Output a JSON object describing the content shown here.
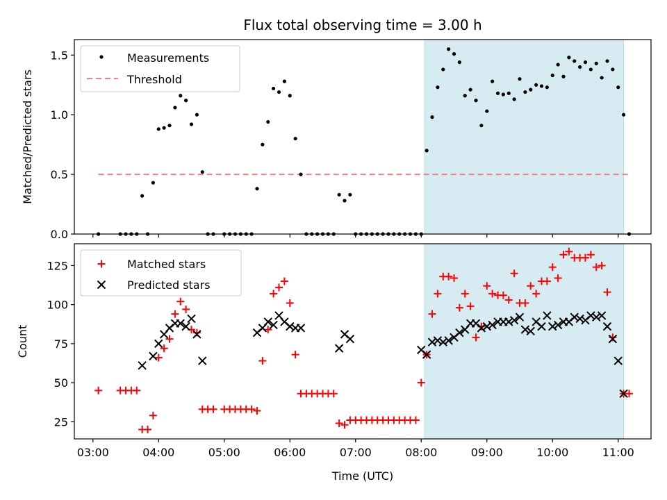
{
  "colors": {
    "measurement": "#000000",
    "threshold": "#f08080",
    "matched": "#ff0000",
    "predicted": "#000000",
    "shade": "#add8e6"
  },
  "chart_data": [
    {
      "type": "scatter",
      "title": "Flux total observing time = 3.00 h",
      "ylabel": "Matched/Predicted stars",
      "xlabel": "",
      "xlim": [
        "02:43",
        "11:30"
      ],
      "ylim": [
        0,
        1.63
      ],
      "yticks": [
        "0.0",
        "0.5",
        "1.0",
        "1.5"
      ],
      "shaded_region": [
        "08:03",
        "11:05"
      ],
      "threshold": {
        "y": 0.5,
        "x_range": [
          "03:05",
          "11:10"
        ]
      },
      "legend": {
        "placement": "upper-left",
        "entries": [
          "Measurements",
          "Threshold"
        ]
      },
      "series": [
        {
          "name": "Measurements",
          "points": [
            [
              "03:05",
              0
            ],
            [
              "03:25",
              0
            ],
            [
              "03:30",
              0
            ],
            [
              "03:35",
              0
            ],
            [
              "03:40",
              0
            ],
            [
              "03:45",
              0.32
            ],
            [
              "03:50",
              0
            ],
            [
              "03:55",
              0.43
            ],
            [
              "04:00",
              0.88
            ],
            [
              "04:05",
              0.89
            ],
            [
              "04:10",
              0.91
            ],
            [
              "04:15",
              1.06
            ],
            [
              "04:20",
              1.16
            ],
            [
              "04:25",
              1.12
            ],
            [
              "04:30",
              0.92
            ],
            [
              "04:35",
              1.0
            ],
            [
              "04:40",
              0.52
            ],
            [
              "04:45",
              0
            ],
            [
              "04:50",
              0
            ],
            [
              "05:00",
              0
            ],
            [
              "05:05",
              0
            ],
            [
              "05:10",
              0
            ],
            [
              "05:15",
              0
            ],
            [
              "05:20",
              0
            ],
            [
              "05:25",
              0
            ],
            [
              "05:30",
              0.38
            ],
            [
              "05:35",
              0.75
            ],
            [
              "05:40",
              0.94
            ],
            [
              "05:45",
              1.22
            ],
            [
              "05:50",
              1.19
            ],
            [
              "05:55",
              1.28
            ],
            [
              "06:00",
              1.16
            ],
            [
              "06:05",
              0.8
            ],
            [
              "06:10",
              0.5
            ],
            [
              "06:15",
              0
            ],
            [
              "06:20",
              0
            ],
            [
              "06:25",
              0
            ],
            [
              "06:30",
              0
            ],
            [
              "06:35",
              0
            ],
            [
              "06:40",
              0
            ],
            [
              "06:45",
              0.33
            ],
            [
              "06:50",
              0.28
            ],
            [
              "06:55",
              0.33
            ],
            [
              "07:00",
              0
            ],
            [
              "07:05",
              0
            ],
            [
              "07:10",
              0
            ],
            [
              "07:15",
              0
            ],
            [
              "07:20",
              0
            ],
            [
              "07:25",
              0
            ],
            [
              "07:30",
              0
            ],
            [
              "07:35",
              0
            ],
            [
              "07:40",
              0
            ],
            [
              "07:45",
              0
            ],
            [
              "07:50",
              0
            ],
            [
              "07:55",
              0
            ],
            [
              "08:00",
              0
            ],
            [
              "08:05",
              0.7
            ],
            [
              "08:10",
              0.98
            ],
            [
              "08:15",
              1.23
            ],
            [
              "08:20",
              1.38
            ],
            [
              "08:25",
              1.55
            ],
            [
              "08:30",
              1.51
            ],
            [
              "08:35",
              1.44
            ],
            [
              "08:40",
              1.16
            ],
            [
              "08:45",
              1.21
            ],
            [
              "08:50",
              1.12
            ],
            [
              "08:55",
              0.91
            ],
            [
              "09:00",
              1.03
            ],
            [
              "09:05",
              1.28
            ],
            [
              "09:10",
              1.18
            ],
            [
              "09:15",
              1.17
            ],
            [
              "09:20",
              1.18
            ],
            [
              "09:25",
              1.13
            ],
            [
              "09:30",
              1.3
            ],
            [
              "09:35",
              1.19
            ],
            [
              "09:40",
              1.21
            ],
            [
              "09:45",
              1.25
            ],
            [
              "09:50",
              1.24
            ],
            [
              "09:55",
              1.23
            ],
            [
              "10:00",
              1.33
            ],
            [
              "10:05",
              1.42
            ],
            [
              "10:10",
              1.32
            ],
            [
              "10:15",
              1.48
            ],
            [
              "10:20",
              1.45
            ],
            [
              "10:25",
              1.4
            ],
            [
              "10:30",
              1.44
            ],
            [
              "10:35",
              1.38
            ],
            [
              "10:40",
              1.43
            ],
            [
              "10:45",
              1.31
            ],
            [
              "10:50",
              1.45
            ],
            [
              "10:55",
              1.38
            ],
            [
              "11:00",
              1.23
            ],
            [
              "11:05",
              1.0
            ],
            [
              "11:10",
              0
            ]
          ]
        },
        {
          "name": "Threshold",
          "y": 0.5
        }
      ]
    },
    {
      "type": "scatter",
      "title": "",
      "ylabel": "Count",
      "xlabel": "Time (UTC)",
      "xlim": [
        "02:43",
        "11:30"
      ],
      "ylim": [
        14,
        139
      ],
      "yticks": [
        "25",
        "50",
        "75",
        "100",
        "125"
      ],
      "xticks": [
        "03:00",
        "04:00",
        "05:00",
        "06:00",
        "07:00",
        "08:00",
        "09:00",
        "10:00",
        "11:00"
      ],
      "shaded_region": [
        "08:03",
        "11:05"
      ],
      "legend": {
        "placement": "upper-left",
        "entries": [
          "Matched stars",
          "Predicted stars"
        ]
      },
      "series": [
        {
          "name": "Matched stars",
          "points": [
            [
              "03:05",
              45
            ],
            [
              "03:25",
              45
            ],
            [
              "03:30",
              45
            ],
            [
              "03:35",
              45
            ],
            [
              "03:40",
              45
            ],
            [
              "03:45",
              20
            ],
            [
              "03:50",
              20
            ],
            [
              "03:55",
              29
            ],
            [
              "04:00",
              66
            ],
            [
              "04:05",
              72
            ],
            [
              "04:10",
              78
            ],
            [
              "04:15",
              94
            ],
            [
              "04:20",
              102
            ],
            [
              "04:25",
              97
            ],
            [
              "04:30",
              84
            ],
            [
              "04:35",
              82
            ],
            [
              "04:40",
              33
            ],
            [
              "04:45",
              33
            ],
            [
              "04:50",
              33
            ],
            [
              "05:00",
              33
            ],
            [
              "05:05",
              33
            ],
            [
              "05:10",
              33
            ],
            [
              "05:15",
              33
            ],
            [
              "05:20",
              33
            ],
            [
              "05:25",
              33
            ],
            [
              "05:30",
              32
            ],
            [
              "05:35",
              64
            ],
            [
              "05:40",
              84
            ],
            [
              "05:45",
              107
            ],
            [
              "05:50",
              111
            ],
            [
              "05:55",
              115
            ],
            [
              "06:00",
              101
            ],
            [
              "06:05",
              68
            ],
            [
              "06:10",
              43
            ],
            [
              "06:15",
              43
            ],
            [
              "06:20",
              43
            ],
            [
              "06:25",
              43
            ],
            [
              "06:30",
              43
            ],
            [
              "06:35",
              43
            ],
            [
              "06:40",
              43
            ],
            [
              "06:45",
              24
            ],
            [
              "06:50",
              23
            ],
            [
              "06:55",
              26
            ],
            [
              "07:00",
              26
            ],
            [
              "07:05",
              26
            ],
            [
              "07:10",
              26
            ],
            [
              "07:15",
              26
            ],
            [
              "07:20",
              26
            ],
            [
              "07:25",
              26
            ],
            [
              "07:30",
              26
            ],
            [
              "07:35",
              26
            ],
            [
              "07:40",
              26
            ],
            [
              "07:45",
              26
            ],
            [
              "07:50",
              26
            ],
            [
              "07:55",
              26
            ],
            [
              "08:00",
              50
            ],
            [
              "08:05",
              68
            ],
            [
              "08:10",
              94
            ],
            [
              "08:15",
              107
            ],
            [
              "08:20",
              118
            ],
            [
              "08:25",
              118
            ],
            [
              "08:30",
              117
            ],
            [
              "08:35",
              98
            ],
            [
              "08:40",
              107
            ],
            [
              "08:45",
              99
            ],
            [
              "08:50",
              79
            ],
            [
              "08:55",
              86
            ],
            [
              "09:00",
              112
            ],
            [
              "09:05",
              107
            ],
            [
              "09:10",
              106
            ],
            [
              "09:15",
              106
            ],
            [
              "09:20",
              103
            ],
            [
              "09:25",
              120
            ],
            [
              "09:30",
              101
            ],
            [
              "09:35",
              101
            ],
            [
              "09:40",
              112
            ],
            [
              "09:45",
              107
            ],
            [
              "09:50",
              115
            ],
            [
              "09:55",
              115
            ],
            [
              "10:00",
              124
            ],
            [
              "10:05",
              117
            ],
            [
              "10:10",
              132
            ],
            [
              "10:15",
              134
            ],
            [
              "10:20",
              130
            ],
            [
              "10:25",
              130
            ],
            [
              "10:30",
              130
            ],
            [
              "10:35",
              132
            ],
            [
              "10:40",
              124
            ],
            [
              "10:45",
              125
            ],
            [
              "10:50",
              108
            ],
            [
              "10:55",
              79
            ],
            [
              "11:05",
              43
            ],
            [
              "11:10",
              43
            ]
          ]
        },
        {
          "name": "Predicted stars",
          "points": [
            [
              "03:45",
              61
            ],
            [
              "03:55",
              67
            ],
            [
              "04:00",
              75
            ],
            [
              "04:05",
              81
            ],
            [
              "04:10",
              85
            ],
            [
              "04:15",
              88
            ],
            [
              "04:20",
              88
            ],
            [
              "04:25",
              86
            ],
            [
              "04:30",
              91
            ],
            [
              "04:35",
              81
            ],
            [
              "04:40",
              64
            ],
            [
              "05:30",
              82
            ],
            [
              "05:35",
              85
            ],
            [
              "05:40",
              89
            ],
            [
              "05:45",
              87
            ],
            [
              "05:50",
              93
            ],
            [
              "05:55",
              89
            ],
            [
              "06:00",
              86
            ],
            [
              "06:05",
              85
            ],
            [
              "06:10",
              85
            ],
            [
              "06:45",
              72
            ],
            [
              "06:50",
              81
            ],
            [
              "06:55",
              78
            ],
            [
              "08:00",
              71
            ],
            [
              "08:05",
              68
            ],
            [
              "08:10",
              76
            ],
            [
              "08:15",
              77
            ],
            [
              "08:20",
              76
            ],
            [
              "08:25",
              77
            ],
            [
              "08:30",
              79
            ],
            [
              "08:35",
              82
            ],
            [
              "08:40",
              84
            ],
            [
              "08:45",
              88
            ],
            [
              "08:50",
              88
            ],
            [
              "08:55",
              85
            ],
            [
              "09:00",
              86
            ],
            [
              "09:05",
              87
            ],
            [
              "09:10",
              89
            ],
            [
              "09:15",
              89
            ],
            [
              "09:20",
              89
            ],
            [
              "09:25",
              90
            ],
            [
              "09:30",
              92
            ],
            [
              "09:35",
              84
            ],
            [
              "09:40",
              83
            ],
            [
              "09:45",
              89
            ],
            [
              "09:50",
              86
            ],
            [
              "09:55",
              93
            ],
            [
              "10:00",
              86
            ],
            [
              "10:05",
              87
            ],
            [
              "10:10",
              89
            ],
            [
              "10:15",
              89
            ],
            [
              "10:20",
              92
            ],
            [
              "10:25",
              91
            ],
            [
              "10:30",
              90
            ],
            [
              "10:35",
              93
            ],
            [
              "10:40",
              92
            ],
            [
              "10:45",
              93
            ],
            [
              "10:50",
              86
            ],
            [
              "10:55",
              78
            ],
            [
              "11:00",
              64
            ],
            [
              "11:05",
              43
            ]
          ]
        }
      ]
    }
  ]
}
